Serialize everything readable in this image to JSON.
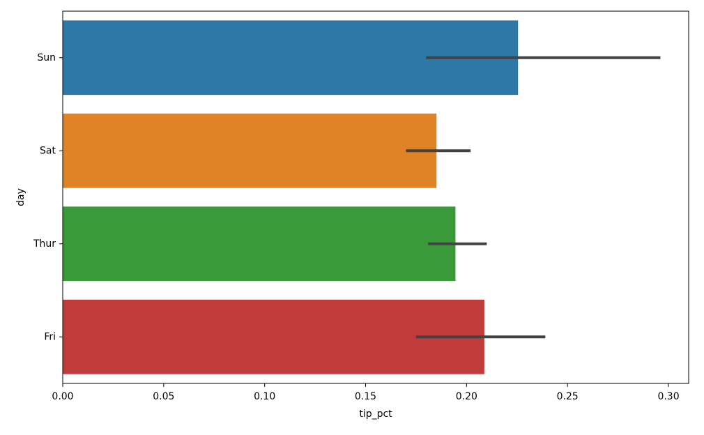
{
  "chart_data": {
    "type": "bar",
    "orientation": "horizontal",
    "categories": [
      "Sun",
      "Sat",
      "Thur",
      "Fri"
    ],
    "values": [
      0.2255,
      0.1851,
      0.1945,
      0.2088
    ],
    "error_bars": [
      [
        0.18,
        0.296
      ],
      [
        0.17,
        0.202
      ],
      [
        0.181,
        0.21
      ],
      [
        0.175,
        0.239
      ]
    ],
    "bar_colors": [
      "#2e78a8",
      "#e08327",
      "#3a9a3a",
      "#c03b3b"
    ],
    "error_bar_color": "#424242",
    "title": "",
    "xlabel": "tip_pct",
    "ylabel": "day",
    "xlim": [
      0.0,
      0.31
    ],
    "xticks": [
      0.0,
      0.05,
      0.1,
      0.15,
      0.2,
      0.25,
      0.3
    ],
    "xtick_labels": [
      "0.00",
      "0.05",
      "0.10",
      "0.15",
      "0.20",
      "0.25",
      "0.30"
    ],
    "grid": false,
    "legend": "none"
  }
}
